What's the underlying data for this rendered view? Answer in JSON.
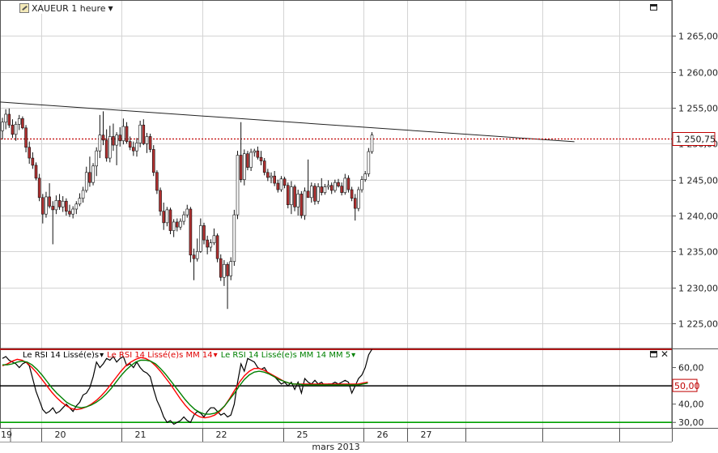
{
  "window": {
    "symbol_label": "XAUEUR 1 heure",
    "symbol_icon": "chart-symbol-icon",
    "caret_icon": "dropdown-caret-icon"
  },
  "chart_data": [
    {
      "type": "candlestick",
      "title": "XAUEUR 1 heure",
      "ylim": [
        1221.5,
        1270.0
      ],
      "yticks": [
        1225,
        1230,
        1235,
        1240,
        1245,
        1250,
        1255,
        1260,
        1265
      ],
      "ytick_labels": [
        "1 225,00",
        "1 230,00",
        "1 235,00",
        "1 240,00",
        "1 245,00",
        "1 250,00",
        "1 255,00",
        "1 260,00",
        "1 265,00"
      ],
      "last_price": 1250.75,
      "last_price_label": "1 250,75",
      "trendline": [
        [
          0,
          1255.8
        ],
        [
          124,
          1250.5
        ]
      ],
      "colors": {
        "up": "#ffffff",
        "down": "#b03030",
        "wick": "#111111",
        "price_line": "#c00000",
        "trendline": "#222222"
      },
      "candles": [
        [
          1251.8,
          1253.6,
          1250.6,
          1253.0
        ],
        [
          1253.0,
          1254.8,
          1252.0,
          1254.1
        ],
        [
          1254.1,
          1254.9,
          1252.2,
          1252.6
        ],
        [
          1252.6,
          1253.4,
          1250.8,
          1251.3
        ],
        [
          1251.3,
          1253.1,
          1250.4,
          1252.7
        ],
        [
          1252.7,
          1254.0,
          1251.9,
          1253.5
        ],
        [
          1253.5,
          1253.8,
          1252.0,
          1252.2
        ],
        [
          1252.2,
          1252.6,
          1248.8,
          1249.5
        ],
        [
          1249.5,
          1250.3,
          1247.2,
          1248.0
        ],
        [
          1248.0,
          1248.8,
          1246.5,
          1247.0
        ],
        [
          1247.0,
          1247.4,
          1244.9,
          1245.2
        ],
        [
          1245.2,
          1245.8,
          1242.0,
          1242.5
        ],
        [
          1242.5,
          1243.0,
          1238.9,
          1240.2
        ],
        [
          1240.2,
          1243.3,
          1239.7,
          1242.6
        ],
        [
          1242.6,
          1244.5,
          1241.0,
          1241.3
        ],
        [
          1241.3,
          1242.0,
          1236.0,
          1240.8
        ],
        [
          1240.8,
          1242.8,
          1240.2,
          1242.1
        ],
        [
          1242.1,
          1243.0,
          1240.8,
          1241.2
        ],
        [
          1241.2,
          1242.7,
          1240.5,
          1242.0
        ],
        [
          1242.0,
          1242.4,
          1240.0,
          1240.6
        ],
        [
          1240.6,
          1241.5,
          1239.8,
          1240.2
        ],
        [
          1240.2,
          1241.3,
          1239.6,
          1240.9
        ],
        [
          1240.9,
          1242.0,
          1240.2,
          1241.6
        ],
        [
          1241.6,
          1243.1,
          1241.3,
          1242.4
        ],
        [
          1242.4,
          1244.0,
          1241.8,
          1243.5
        ],
        [
          1243.5,
          1246.8,
          1243.2,
          1246.0
        ],
        [
          1246.0,
          1248.2,
          1244.0,
          1244.6
        ],
        [
          1244.6,
          1247.3,
          1244.2,
          1246.9
        ],
        [
          1246.9,
          1249.5,
          1245.5,
          1249.0
        ],
        [
          1249.0,
          1254.0,
          1248.0,
          1251.2
        ],
        [
          1251.2,
          1254.5,
          1249.8,
          1250.5
        ],
        [
          1250.5,
          1252.0,
          1247.5,
          1248.0
        ],
        [
          1248.0,
          1252.5,
          1247.4,
          1251.0
        ],
        [
          1251.0,
          1252.8,
          1249.0,
          1249.8
        ],
        [
          1249.8,
          1251.6,
          1247.0,
          1251.2
        ],
        [
          1251.2,
          1252.3,
          1249.6,
          1250.4
        ],
        [
          1250.4,
          1253.5,
          1249.9,
          1252.4
        ],
        [
          1252.4,
          1253.0,
          1250.0,
          1250.3
        ],
        [
          1250.3,
          1251.0,
          1249.1,
          1249.5
        ],
        [
          1249.5,
          1250.3,
          1248.3,
          1249.0
        ],
        [
          1249.0,
          1250.8,
          1248.2,
          1250.1
        ],
        [
          1250.1,
          1253.2,
          1249.5,
          1252.6
        ],
        [
          1252.6,
          1253.4,
          1249.8,
          1250.0
        ],
        [
          1250.0,
          1251.5,
          1248.7,
          1251.0
        ],
        [
          1251.0,
          1251.4,
          1248.8,
          1249.2
        ],
        [
          1249.2,
          1249.8,
          1245.5,
          1246.0
        ],
        [
          1246.0,
          1246.3,
          1243.0,
          1243.5
        ],
        [
          1243.5,
          1243.9,
          1240.0,
          1240.6
        ],
        [
          1240.6,
          1241.8,
          1238.0,
          1239.0
        ],
        [
          1239.0,
          1241.2,
          1238.5,
          1240.8
        ],
        [
          1240.8,
          1241.1,
          1237.4,
          1237.9
        ],
        [
          1237.9,
          1239.5,
          1237.0,
          1239.1
        ],
        [
          1239.1,
          1239.6,
          1237.8,
          1238.4
        ],
        [
          1238.4,
          1239.6,
          1238.0,
          1239.2
        ],
        [
          1239.2,
          1240.6,
          1238.7,
          1240.1
        ],
        [
          1240.1,
          1241.5,
          1239.7,
          1240.9
        ],
        [
          1240.9,
          1241.2,
          1233.5,
          1234.5
        ],
        [
          1234.5,
          1235.4,
          1231.0,
          1234.0
        ],
        [
          1234.0,
          1236.8,
          1233.6,
          1235.0
        ],
        [
          1235.0,
          1239.6,
          1234.8,
          1238.6
        ],
        [
          1238.6,
          1239.0,
          1236.0,
          1236.6
        ],
        [
          1236.6,
          1237.2,
          1234.6,
          1235.6
        ],
        [
          1235.6,
          1236.7,
          1235.0,
          1236.2
        ],
        [
          1236.2,
          1238.2,
          1235.9,
          1237.2
        ],
        [
          1237.2,
          1237.5,
          1233.5,
          1234.0
        ],
        [
          1234.0,
          1234.6,
          1230.9,
          1231.4
        ],
        [
          1231.4,
          1233.8,
          1230.2,
          1233.2
        ],
        [
          1233.2,
          1233.5,
          1227.0,
          1231.6
        ],
        [
          1231.6,
          1234.2,
          1231.0,
          1233.6
        ],
        [
          1233.6,
          1240.8,
          1233.0,
          1240.1
        ],
        [
          1240.1,
          1249.0,
          1239.5,
          1248.4
        ],
        [
          1248.4,
          1253.0,
          1244.6,
          1245.0
        ],
        [
          1245.0,
          1249.2,
          1244.2,
          1248.6
        ],
        [
          1248.6,
          1249.0,
          1246.3,
          1246.7
        ],
        [
          1246.7,
          1249.3,
          1246.2,
          1248.8
        ],
        [
          1248.8,
          1249.3,
          1248.2,
          1249.0
        ],
        [
          1249.0,
          1249.6,
          1247.8,
          1248.1
        ],
        [
          1248.1,
          1249.0,
          1247.0,
          1247.6
        ],
        [
          1247.6,
          1248.0,
          1245.6,
          1246.0
        ],
        [
          1246.0,
          1246.5,
          1244.8,
          1245.3
        ],
        [
          1245.3,
          1246.0,
          1244.5,
          1245.5
        ],
        [
          1245.5,
          1246.2,
          1244.1,
          1244.5
        ],
        [
          1244.5,
          1245.0,
          1243.2,
          1243.6
        ],
        [
          1243.6,
          1245.5,
          1243.3,
          1245.1
        ],
        [
          1245.1,
          1245.4,
          1243.8,
          1244.2
        ],
        [
          1244.2,
          1244.6,
          1241.0,
          1241.5
        ],
        [
          1241.5,
          1244.8,
          1240.2,
          1244.0
        ],
        [
          1244.0,
          1244.3,
          1240.6,
          1241.2
        ],
        [
          1241.2,
          1243.6,
          1240.0,
          1243.0
        ],
        [
          1243.0,
          1243.4,
          1239.6,
          1240.0
        ],
        [
          1240.0,
          1243.9,
          1239.4,
          1243.4
        ],
        [
          1243.4,
          1247.8,
          1242.9,
          1242.5
        ],
        [
          1242.5,
          1244.6,
          1241.8,
          1244.1
        ],
        [
          1244.1,
          1244.5,
          1241.5,
          1242.0
        ],
        [
          1242.0,
          1244.5,
          1241.6,
          1244.0
        ],
        [
          1244.0,
          1245.2,
          1242.8,
          1243.2
        ],
        [
          1243.2,
          1244.4,
          1242.9,
          1244.0
        ],
        [
          1244.0,
          1244.9,
          1243.6,
          1244.2
        ],
        [
          1244.2,
          1244.6,
          1243.0,
          1243.5
        ],
        [
          1243.5,
          1245.0,
          1243.2,
          1244.6
        ],
        [
          1244.6,
          1245.1,
          1243.9,
          1244.1
        ],
        [
          1244.1,
          1244.6,
          1242.8,
          1243.2
        ],
        [
          1243.2,
          1245.8,
          1242.9,
          1245.2
        ],
        [
          1245.2,
          1245.6,
          1243.2,
          1243.6
        ],
        [
          1243.6,
          1244.0,
          1242.0,
          1242.4
        ],
        [
          1242.4,
          1243.0,
          1239.3,
          1241.0
        ],
        [
          1241.0,
          1244.0,
          1240.6,
          1243.6
        ],
        [
          1243.6,
          1245.5,
          1243.2,
          1245.0
        ],
        [
          1245.0,
          1246.2,
          1244.7,
          1245.8
        ],
        [
          1245.8,
          1249.4,
          1245.4,
          1248.9
        ],
        [
          1248.9,
          1251.6,
          1248.6,
          1251.2
        ]
      ]
    },
    {
      "type": "line",
      "ylim": [
        27.0,
        70.0
      ],
      "yticks": [
        30,
        40,
        50,
        60
      ],
      "ytick_labels": [
        "30,00",
        "40,00",
        "50,00",
        "60,00"
      ],
      "hlines": {
        "upper": 70.0,
        "mid": 50.0,
        "lower": 30.0
      },
      "mid_label": "50,00",
      "colors": {
        "upper": "#cc0000",
        "mid": "#000000",
        "lower": "#00a000",
        "mid_label": "#c00000"
      },
      "series": [
        {
          "name": "Le RSI 14 Lissé(e)s",
          "color": "#000000",
          "values": [
            65,
            66,
            64,
            63,
            62,
            60,
            62,
            63,
            61,
            54,
            47,
            42,
            37,
            35,
            36,
            38,
            35,
            36,
            38,
            40,
            38,
            36,
            39,
            41,
            45,
            46,
            49,
            55,
            63,
            60,
            62,
            65,
            64,
            66,
            63,
            65,
            66,
            61,
            62,
            60,
            63,
            60,
            58,
            57,
            55,
            48,
            42,
            38,
            33,
            30,
            31,
            29,
            30,
            31,
            33,
            31,
            30,
            34,
            36,
            35,
            33,
            36,
            38,
            38,
            36,
            34,
            35,
            33,
            34,
            40,
            52,
            62,
            58,
            65,
            64,
            63,
            60,
            59,
            60,
            57,
            56,
            55,
            53,
            51,
            52,
            50,
            52,
            48,
            52,
            46,
            54,
            52,
            51,
            53,
            51,
            52,
            50,
            51,
            51,
            52,
            51,
            52,
            53,
            52,
            46,
            50,
            54,
            56,
            60,
            67,
            70
          ]
        },
        {
          "name": "Le RSI 14 Lissé(e)s MM 14",
          "color": "#ff0000",
          "values": [
            61,
            62,
            63.5,
            64.5,
            64,
            62.5,
            60,
            57,
            53.5,
            50,
            46.5,
            43.5,
            41,
            39,
            37.5,
            37,
            37.5,
            38.5,
            40,
            42,
            44.5,
            47.5,
            51,
            54.5,
            58,
            61,
            63,
            64.5,
            65.5,
            65,
            63.5,
            61,
            58,
            54.5,
            51,
            47,
            43,
            39.5,
            36.5,
            34.5,
            33,
            32.5,
            33,
            34,
            36,
            39,
            43,
            47.5,
            52,
            55.5,
            58,
            59.5,
            59.5,
            58.5,
            57,
            55.5,
            54,
            52.5,
            51.5,
            51,
            51,
            51,
            51,
            51,
            51,
            51,
            51,
            51,
            51,
            51,
            51,
            51,
            51,
            51.5,
            52
          ]
        },
        {
          "name": "Le RSI 14 Lissé(e)s MM 14 MM 5",
          "color": "#008000",
          "values": [
            61.5,
            61.5,
            62,
            63,
            63.5,
            63,
            61.5,
            59,
            56,
            52.5,
            49,
            46,
            43.5,
            41,
            39.5,
            38.5,
            38,
            38.5,
            39.5,
            41,
            43,
            45.5,
            48.5,
            52,
            55.5,
            58.5,
            61,
            63,
            64,
            64,
            63.5,
            62,
            59.5,
            56.5,
            53,
            49.5,
            46,
            42.5,
            39.5,
            37,
            35.5,
            34.5,
            34.5,
            35,
            36.5,
            39,
            42.5,
            46,
            50,
            53.5,
            56,
            57.5,
            58,
            57.5,
            56.5,
            55,
            53.5,
            52.5,
            51.5,
            51,
            51,
            50.5,
            50.5,
            50.5,
            50.5,
            50.5,
            50.5,
            50.5,
            50.5,
            50.5,
            50.5,
            50.5,
            50.5,
            51,
            51.5
          ]
        }
      ]
    }
  ],
  "time_axis": {
    "day_labels": [
      {
        "text": "19",
        "candle": 0
      },
      {
        "text": "20",
        "candle": 12
      },
      {
        "text": "21",
        "candle": 36
      },
      {
        "text": "22",
        "candle": 60
      },
      {
        "text": "25",
        "candle": 84
      },
      {
        "text": "26",
        "candle": 108
      },
      {
        "text": "27",
        "candle": 121
      }
    ],
    "month_label": "mars 2013"
  },
  "indicator_legend": {
    "rsi": "Le RSI 14 Lissé(e)s",
    "mm14": "Le RSI 14 Lissé(e)s MM 14",
    "mm5": "Le RSI 14 Lissé(e)s MM 14 MM 5",
    "caret": "▾"
  },
  "buttons": {
    "maximize_icon": "maximize-icon",
    "close_glyph": "✕"
  }
}
